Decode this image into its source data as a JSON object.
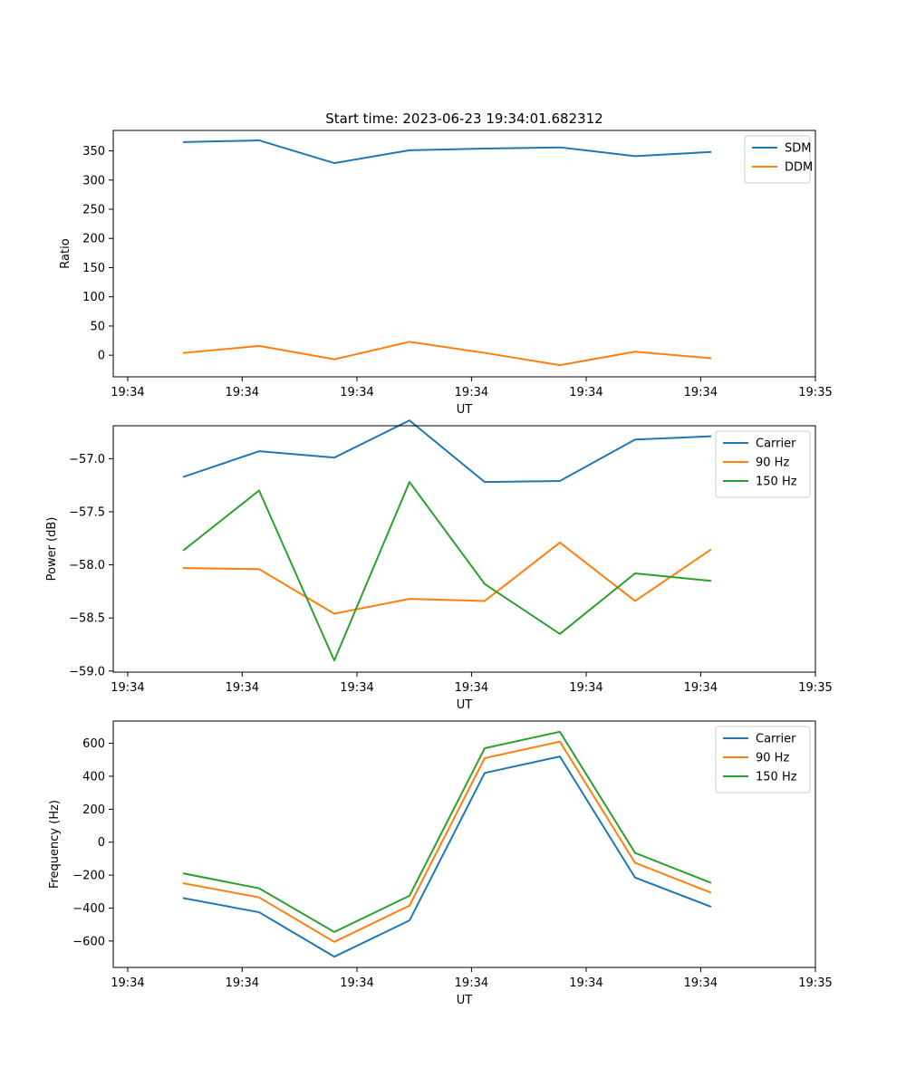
{
  "figure_title": "Start time: 2023-06-23 19:34:01.682312",
  "colors": {
    "blue": "#1f77b4",
    "orange": "#ff7f0e",
    "green": "#2ca02c",
    "axes": "#000000",
    "legend_border": "#cccccc"
  },
  "chart_data": [
    {
      "type": "line",
      "xlabel": "UT",
      "ylabel": "Ratio",
      "x_tick_labels": [
        "19:34",
        "19:34",
        "19:34",
        "19:34",
        "19:34",
        "19:34",
        "19:34",
        "19:35"
      ],
      "y_ticks": [
        0,
        50,
        100,
        150,
        200,
        250,
        300,
        350
      ],
      "y_tick_labels": [
        "0",
        "50",
        "100",
        "150",
        "200",
        "250",
        "300",
        "350"
      ],
      "ylim": [
        -37,
        385
      ],
      "legend_location": "upper right",
      "grid": false,
      "series": [
        {
          "name": "SDM",
          "color": "#1f77b4",
          "values": [
            365,
            368,
            329,
            351,
            354,
            356,
            341,
            348
          ]
        },
        {
          "name": "DDM",
          "color": "#ff7f0e",
          "values": [
            4,
            16,
            -7,
            23,
            4,
            -17,
            6,
            -5
          ]
        }
      ]
    },
    {
      "type": "line",
      "xlabel": "UT",
      "ylabel": "Power (dB)",
      "x_tick_labels": [
        "19:34",
        "19:34",
        "19:34",
        "19:34",
        "19:34",
        "19:34",
        "19:34",
        "19:35"
      ],
      "y_ticks": [
        -57.0,
        -57.5,
        -58.0,
        -58.5,
        -59.0
      ],
      "y_tick_labels": [
        "−57.0",
        "−57.5",
        "−58.0",
        "−58.5",
        "−59.0"
      ],
      "ylim": [
        -59.01,
        -56.69
      ],
      "legend_location": "upper right",
      "grid": false,
      "series": [
        {
          "name": "Carrier",
          "color": "#1f77b4",
          "values": [
            -57.17,
            -56.93,
            -56.99,
            -56.64,
            -57.22,
            -57.21,
            -56.82,
            -56.79
          ]
        },
        {
          "name": "90 Hz",
          "color": "#ff7f0e",
          "values": [
            -58.03,
            -58.04,
            -58.46,
            -58.32,
            -58.34,
            -57.79,
            -58.34,
            -57.86
          ]
        },
        {
          "name": "150 Hz",
          "color": "#2ca02c",
          "values": [
            -57.86,
            -57.3,
            -58.9,
            -57.22,
            -58.18,
            -58.65,
            -58.08,
            -58.15
          ]
        }
      ]
    },
    {
      "type": "line",
      "xlabel": "UT",
      "ylabel": "Frequency (Hz)",
      "x_tick_labels": [
        "19:34",
        "19:34",
        "19:34",
        "19:34",
        "19:34",
        "19:34",
        "19:34",
        "19:35"
      ],
      "y_ticks": [
        -600,
        -400,
        -200,
        0,
        200,
        400,
        600
      ],
      "y_tick_labels": [
        "−600",
        "−400",
        "−200",
        "0",
        "200",
        "400",
        "600"
      ],
      "ylim": [
        -760,
        735
      ],
      "legend_location": "upper right",
      "grid": false,
      "series": [
        {
          "name": "Carrier",
          "color": "#1f77b4",
          "values": [
            -340,
            -425,
            -695,
            -475,
            420,
            520,
            -215,
            -390
          ]
        },
        {
          "name": "90 Hz",
          "color": "#ff7f0e",
          "values": [
            -250,
            -335,
            -605,
            -385,
            510,
            610,
            -125,
            -305
          ]
        },
        {
          "name": "150 Hz",
          "color": "#2ca02c",
          "values": [
            -190,
            -280,
            -545,
            -325,
            570,
            670,
            -65,
            -245
          ]
        }
      ]
    }
  ]
}
